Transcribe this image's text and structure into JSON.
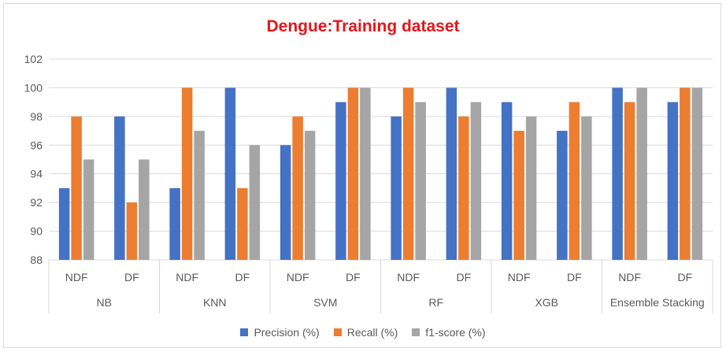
{
  "chart_data": {
    "type": "bar",
    "title": "Dengue:Training dataset",
    "groups": [
      "NB",
      "KNN",
      "SVM",
      "RF",
      "XGB",
      "Ensemble Stacking"
    ],
    "categories": [
      "NDF",
      "DF",
      "NDF",
      "DF",
      "NDF",
      "DF",
      "NDF",
      "DF",
      "NDF",
      "DF",
      "NDF",
      "DF"
    ],
    "series": [
      {
        "name": "Precision  (%)",
        "color": "#4472c4",
        "values": [
          93,
          98,
          93,
          100,
          96,
          99,
          98,
          100,
          99,
          97,
          100,
          99
        ]
      },
      {
        "name": "Recall  (%)",
        "color": "#ed7d31",
        "values": [
          98,
          92,
          100,
          93,
          98,
          100,
          100,
          98,
          97,
          99,
          99,
          100
        ]
      },
      {
        "name": "f1-score  (%)",
        "color": "#a5a5a5",
        "values": [
          95,
          95,
          97,
          96,
          97,
          100,
          99,
          99,
          98,
          98,
          100,
          100
        ]
      }
    ],
    "ylim": [
      88,
      102
    ],
    "yticks": [
      88,
      90,
      92,
      94,
      96,
      98,
      100,
      102
    ],
    "grid": true,
    "legend_position": "bottom"
  }
}
